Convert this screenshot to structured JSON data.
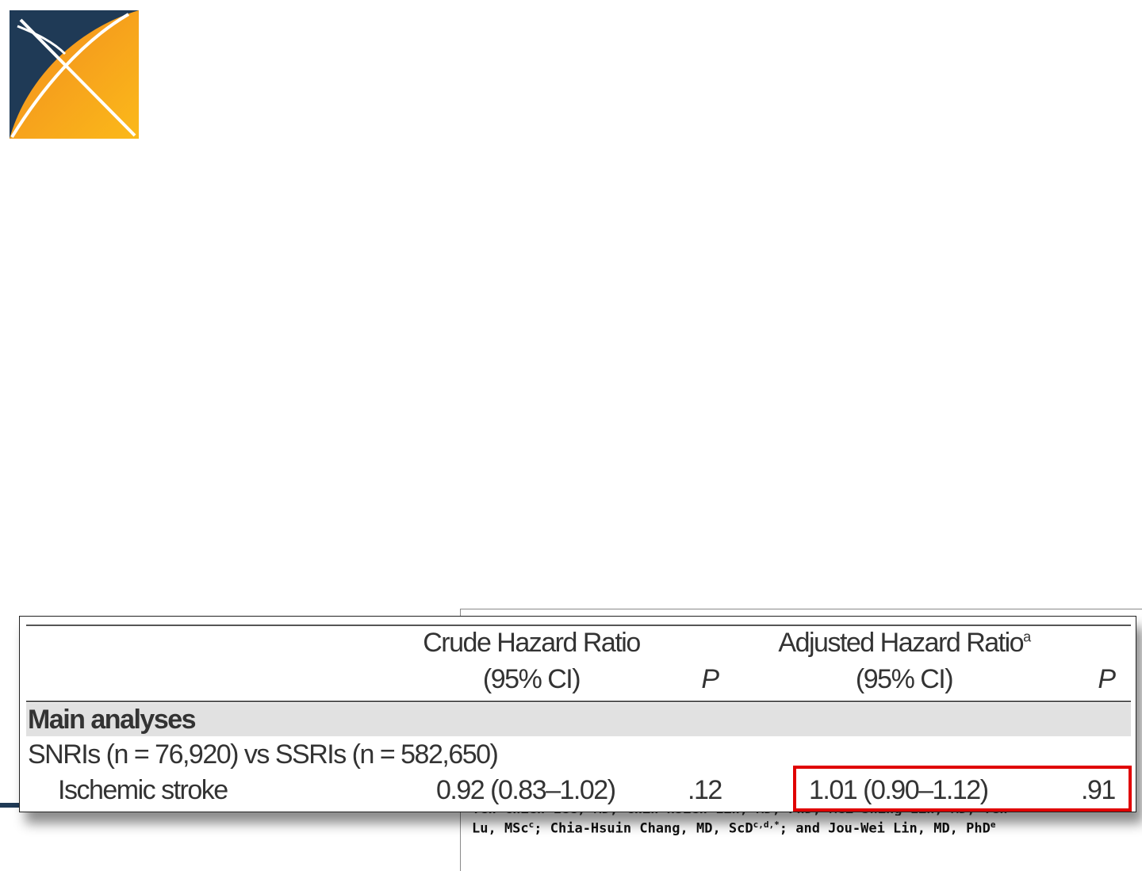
{
  "logo": {
    "icon": "x-logo-icon",
    "colors": {
      "navy": "#1f3a56",
      "orange": "#f28c1e",
      "yellow": "#fbb91a"
    }
  },
  "table": {
    "headers": {
      "crude_line1": "Crude Hazard Ratio",
      "crude_line2": "(95% CI)",
      "p": "P",
      "adjusted_line1": "Adjusted Hazard Ratio",
      "adjusted_sup": "a",
      "adjusted_line2": "(95% CI)",
      "p2": "P"
    },
    "section_label": "Main analyses",
    "comparison_label": "SNRIs (n = 76,920) vs SSRIs (n = 582,650)",
    "row": {
      "outcome": "Ischemic stroke",
      "crude_hr": "0.92 (0.83–1.02)",
      "crude_p": ".12",
      "adjusted_hr": "1.01 (0.90–1.12)",
      "adjusted_p": ".91"
    },
    "highlight_color": "#e00000"
  },
  "paper": {
    "authors_line_start": "Lu, MSc",
    "authors_sup1": "c",
    "authors_mid": "; Chia-Hsuin Chang, MD, ScD",
    "authors_sup2": "c,d,*",
    "authors_end": "; and Jou-Wei Lin, MD, PhD",
    "authors_sup3": "e"
  }
}
